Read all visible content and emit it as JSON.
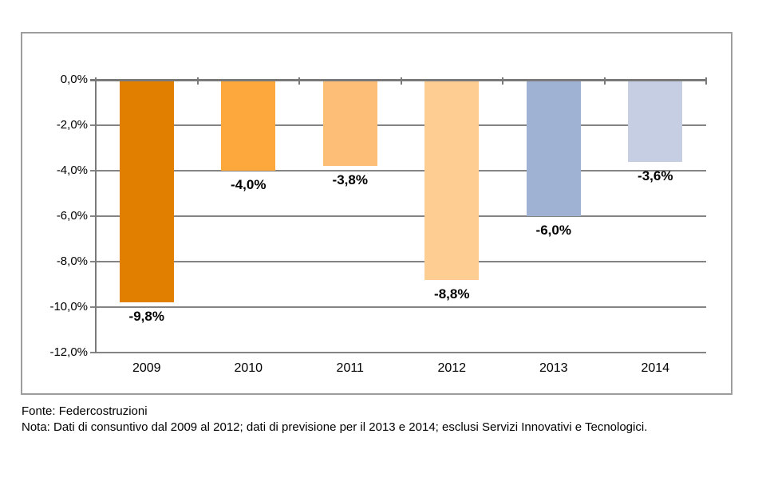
{
  "footer": {
    "source_line": "Fonte: Federcostruzioni",
    "note_line": "Nota: Dati di consuntivo dal 2009 al 2012; dati di previsione per il 2013 e 2014; esclusi Servizi Innovativi e Tecnologici."
  },
  "colors": {
    "frame_border": "#9d9d9d",
    "gridline": "#848484",
    "axis": "#7a7a7a",
    "text": "#000000"
  },
  "chart_data": {
    "type": "bar",
    "categories": [
      "2009",
      "2010",
      "2011",
      "2012",
      "2013",
      "2014"
    ],
    "values": [
      -9.8,
      -4.0,
      -3.8,
      -8.8,
      -6.0,
      -3.6
    ],
    "value_labels": [
      "-9,8%",
      "-4,0%",
      "-3,8%",
      "-8,8%",
      "-6,0%",
      "-3,6%"
    ],
    "bar_colors": [
      "#E07F00",
      "#FCA83C",
      "#FDBE77",
      "#FECD92",
      "#A0B2D3",
      "#C5CEE2"
    ],
    "title": "",
    "xlabel": "",
    "ylabel": "",
    "ylim": [
      -12,
      0
    ],
    "y_tick_step": 2,
    "y_tick_labels": [
      "0,0%",
      "-2,0%",
      "-4,0%",
      "-6,0%",
      "-8,0%",
      "-10,0%",
      "-12,0%"
    ],
    "grid": true,
    "legend": false,
    "value_label_position": "below-bar-end"
  }
}
